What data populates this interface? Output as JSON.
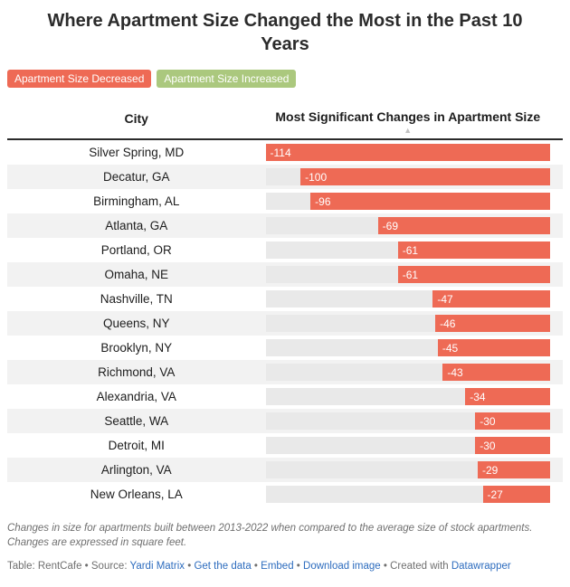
{
  "title": "Where Apartment Size Changed the Most in the Past 10 Years",
  "legend": {
    "decreased": {
      "label": "Apartment Size Decreased",
      "color": "#ee6a55"
    },
    "increased": {
      "label": "Apartment Size Increased",
      "color": "#abc87e"
    }
  },
  "table": {
    "city_header": "City",
    "value_header": "Most Significant Changes in Apartment Size",
    "sort_icon": "▲"
  },
  "chart_data": {
    "type": "bar",
    "orientation": "horizontal",
    "title": "Most Significant Changes in Apartment Size",
    "categories": [
      "Silver Spring, MD",
      "Decatur, GA",
      "Birmingham, AL",
      "Atlanta, GA",
      "Portland, OR",
      "Omaha, NE",
      "Nashville, TN",
      "Queens, NY",
      "Brooklyn, NY",
      "Richmond, VA",
      "Alexandria, VA",
      "Seattle, WA",
      "Detroit, MI",
      "Arlington, VA",
      "New Orleans, LA"
    ],
    "values": [
      -114,
      -100,
      -96,
      -69,
      -61,
      -61,
      -47,
      -46,
      -45,
      -43,
      -34,
      -30,
      -30,
      -29,
      -27
    ],
    "xlim": [
      -114,
      0
    ],
    "bar_color": "#ee6a55",
    "track_color": "#e9e9e9",
    "legend_position": "top",
    "grid": false
  },
  "colors": {
    "bar": "#ee6a55",
    "badge_increased": "#abc87e",
    "track": "#e9e9e9",
    "alt_row": "#f2f2f2",
    "link": "#2d6cbe"
  },
  "notes": "Changes in size for apartments built between 2013-2022 when compared to the average size of stock apartments. Changes are expressed in square feet.",
  "footer": {
    "prefix": "Table: RentCafe • Source: ",
    "source_link": "Yardi Matrix",
    "separator": " • ",
    "get_data_link": "Get the data",
    "embed_link": "Embed",
    "download_link": "Download image",
    "created_with": " • Created with ",
    "datawrapper_link": "Datawrapper"
  }
}
